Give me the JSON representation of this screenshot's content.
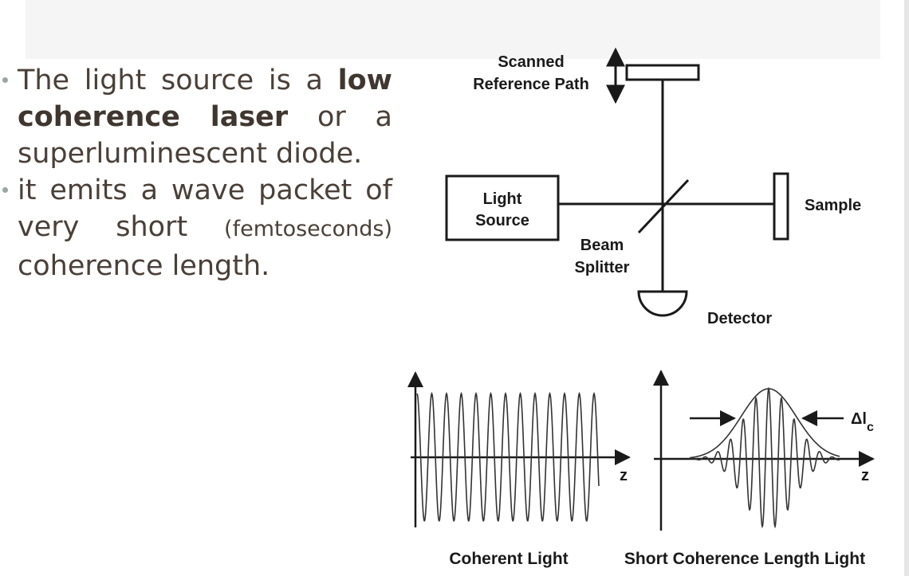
{
  "bullets": [
    {
      "t1": "The light source is a ",
      "b1": "low coherence laser",
      "t2": " or a superluminescent diode."
    },
    {
      "t1": "it emits a wave packet of very short ",
      "small": "(femtoseconds)",
      "t2": " coherence length."
    }
  ],
  "diagram": {
    "labels": {
      "scanned_line1": "Scanned",
      "scanned_line2": "Reference Path",
      "light_line1": "Light",
      "light_line2": "Source",
      "sample": "Sample",
      "beam_line1": "Beam",
      "beam_line2": "Splitter",
      "detector": "Detector"
    },
    "waves": {
      "axis_label": "z",
      "delta_symbol": "Δl",
      "delta_sub": "c",
      "caption_left": "Coherent Light",
      "caption_right": "Short Coherence Length Light"
    },
    "colors": {
      "line": "#1a1a1a",
      "text": "#4a4038"
    }
  }
}
